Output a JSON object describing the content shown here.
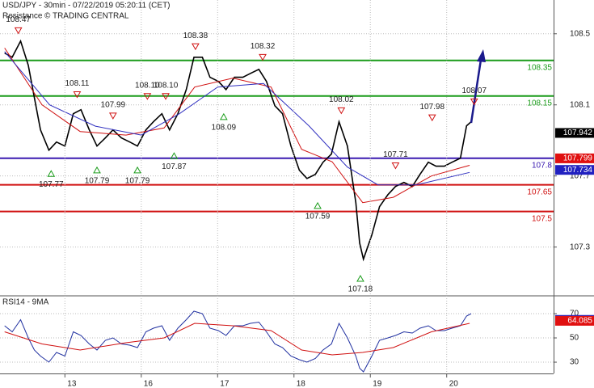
{
  "chart_data": [
    {
      "type": "line",
      "title": "USD/JPY - 30min - 07/22/2019 05:20:11 (CET)",
      "subtitle": "Resistance",
      "copyright": "© TRADING CENTRAL",
      "xlim": [
        -0.85,
        6.4
      ],
      "ylim": [
        107.03,
        108.69
      ],
      "yticks": [
        108.5,
        108.1,
        107.7,
        107.3
      ],
      "grid": true,
      "series": [
        {
          "color": "#000000",
          "x": [
            -0.79,
            -0.69,
            -0.58,
            -0.48,
            -0.4,
            -0.32,
            -0.21,
            -0.11,
            0,
            0.11,
            0.21,
            0.32,
            0.42,
            0.53,
            0.63,
            0.74,
            0.85,
            0.95,
            1.06,
            1.16,
            1.27,
            1.37,
            1.48,
            1.59,
            1.69,
            1.8,
            1.9,
            2.01,
            2.11,
            2.22,
            2.33,
            2.43,
            2.54,
            2.64,
            2.75,
            2.85,
            2.96,
            3.07,
            3.17,
            3.28,
            3.38,
            3.49,
            3.59,
            3.7,
            3.81,
            3.86,
            3.91,
            4.02,
            4.12,
            4.23,
            4.33,
            4.44,
            4.55,
            4.65,
            4.76,
            4.86,
            4.97,
            5.07,
            5.18,
            5.26,
            5.32
          ],
          "values": [
            108.391,
            108.368,
            108.459,
            108.323,
            108.141,
            107.959,
            107.845,
            107.891,
            107.868,
            108.05,
            108.073,
            107.959,
            107.868,
            107.914,
            107.959,
            107.914,
            107.891,
            107.868,
            107.959,
            108.005,
            108.05,
            107.959,
            108.05,
            108.186,
            108.368,
            108.368,
            108.255,
            108.232,
            108.186,
            108.255,
            108.255,
            108.277,
            108.3,
            108.232,
            108.095,
            108.05,
            107.868,
            107.732,
            107.686,
            107.709,
            107.777,
            107.823,
            108.005,
            107.868,
            107.55,
            107.323,
            107.232,
            107.368,
            107.527,
            107.595,
            107.641,
            107.664,
            107.641,
            107.709,
            107.777,
            107.755,
            107.755,
            107.777,
            107.8,
            107.982,
            108.005
          ]
        },
        {
          "color": "#d01010",
          "x": [
            -0.79,
            -0.3,
            0.2,
            0.8,
            1.3,
            1.7,
            2.2,
            2.7,
            3.1,
            3.5,
            3.9,
            4.3,
            4.8,
            5.3
          ],
          "values": [
            108.42,
            108.1,
            107.95,
            107.93,
            107.97,
            108.2,
            108.25,
            108.2,
            107.85,
            107.78,
            107.55,
            107.58,
            107.7,
            107.76
          ]
        },
        {
          "color": "#3030c0",
          "x": [
            -0.79,
            -0.2,
            0.4,
            1.0,
            1.5,
            2.0,
            2.6,
            3.2,
            3.7,
            4.1,
            4.6,
            5.3
          ],
          "values": [
            108.4,
            108.1,
            107.98,
            107.93,
            108.05,
            108.2,
            108.22,
            107.98,
            107.75,
            107.65,
            107.65,
            107.72
          ]
        }
      ],
      "levels": [
        {
          "value": 108.35,
          "color": "#1a9c1a"
        },
        {
          "value": 108.15,
          "color": "#1a9c1a"
        },
        {
          "value": 107.8,
          "color": "#3a1ab0"
        },
        {
          "value": 107.65,
          "color": "#d01010"
        },
        {
          "value": 107.5,
          "color": "#d01010"
        }
      ],
      "annotations": [
        {
          "x": -0.61,
          "y": 108.47,
          "label": "108.47",
          "kind": "high"
        },
        {
          "x": 0.16,
          "y": 108.11,
          "label": "108.11",
          "kind": "high"
        },
        {
          "x": 0.63,
          "y": 107.99,
          "label": "107.99",
          "kind": "high"
        },
        {
          "x": 1.08,
          "y": 108.1,
          "label": "108.10",
          "kind": "high"
        },
        {
          "x": 1.32,
          "y": 108.1,
          "label": "108.10",
          "kind": "high"
        },
        {
          "x": 1.71,
          "y": 108.38,
          "label": "108.38",
          "kind": "high"
        },
        {
          "x": 2.59,
          "y": 108.32,
          "label": "108.32",
          "kind": "high"
        },
        {
          "x": 3.62,
          "y": 108.02,
          "label": "108.02",
          "kind": "high"
        },
        {
          "x": 4.33,
          "y": 107.71,
          "label": "107.71",
          "kind": "high"
        },
        {
          "x": 4.81,
          "y": 107.98,
          "label": "107.98",
          "kind": "high"
        },
        {
          "x": 5.36,
          "y": 108.07,
          "label": "108.07",
          "kind": "high"
        },
        {
          "x": -0.18,
          "y": 107.77,
          "label": "107.77",
          "kind": "low"
        },
        {
          "x": 0.42,
          "y": 107.79,
          "label": "107.79",
          "kind": "low"
        },
        {
          "x": 0.95,
          "y": 107.79,
          "label": "107.79",
          "kind": "low"
        },
        {
          "x": 1.43,
          "y": 107.87,
          "label": "107.87",
          "kind": "low"
        },
        {
          "x": 2.08,
          "y": 108.09,
          "label": "108.09",
          "kind": "low"
        },
        {
          "x": 3.31,
          "y": 107.59,
          "label": "107.59",
          "kind": "low"
        },
        {
          "x": 3.87,
          "y": 107.18,
          "label": "107.18",
          "kind": "low"
        }
      ],
      "boxes": [
        {
          "value": 107.942,
          "color": "#000000"
        },
        {
          "value": 107.799,
          "color": "#e01010"
        },
        {
          "value": 107.734,
          "color": "#2020c0"
        }
      ]
    },
    {
      "type": "line",
      "title": "RSI14 - 9MA",
      "xlim": [
        -0.85,
        6.4
      ],
      "ylim": [
        20.7,
        84
      ],
      "yticks": [
        70,
        50,
        30
      ],
      "xticks": [
        {
          "value": 0,
          "label": "13"
        },
        {
          "value": 1,
          "label": "16"
        },
        {
          "value": 2,
          "label": "17"
        },
        {
          "value": 3,
          "label": "18"
        },
        {
          "value": 4,
          "label": "19"
        },
        {
          "value": 5,
          "label": "20"
        }
      ],
      "grid": true,
      "series": [
        {
          "color": "#2030a0",
          "x": [
            -0.79,
            -0.69,
            -0.58,
            -0.48,
            -0.4,
            -0.32,
            -0.21,
            -0.11,
            0,
            0.11,
            0.21,
            0.32,
            0.42,
            0.53,
            0.63,
            0.74,
            0.85,
            0.95,
            1.06,
            1.16,
            1.27,
            1.37,
            1.48,
            1.59,
            1.69,
            1.8,
            1.9,
            2.01,
            2.11,
            2.22,
            2.33,
            2.43,
            2.54,
            2.64,
            2.75,
            2.85,
            2.96,
            3.07,
            3.17,
            3.28,
            3.38,
            3.49,
            3.59,
            3.7,
            3.81,
            3.86,
            3.91,
            4.02,
            4.12,
            4.23,
            4.33,
            4.44,
            4.55,
            4.65,
            4.76,
            4.86,
            4.97,
            5.07,
            5.18,
            5.26,
            5.32
          ],
          "values": [
            60,
            55,
            65,
            50,
            40,
            35,
            30,
            38,
            35,
            55,
            52,
            45,
            40,
            48,
            50,
            45,
            44,
            42,
            55,
            58,
            60,
            48,
            58,
            65,
            72,
            70,
            58,
            56,
            52,
            60,
            60,
            62,
            63,
            55,
            45,
            42,
            35,
            32,
            30,
            33,
            40,
            45,
            62,
            50,
            35,
            25,
            22,
            35,
            48,
            50,
            52,
            55,
            54,
            58,
            60,
            56,
            56,
            58,
            60,
            68,
            70
          ]
        },
        {
          "color": "#d01010",
          "x": [
            -0.79,
            -0.3,
            0.2,
            0.8,
            1.3,
            1.7,
            2.2,
            2.7,
            3.1,
            3.5,
            3.9,
            4.3,
            4.8,
            5.3
          ],
          "values": [
            55,
            45,
            40,
            46,
            50,
            62,
            60,
            56,
            40,
            36,
            38,
            42,
            55,
            62
          ]
        }
      ],
      "boxes": [
        {
          "value": 64.8342,
          "color": "#2020c0"
        },
        {
          "value": 64.085,
          "color": "#e01010"
        }
      ]
    }
  ]
}
